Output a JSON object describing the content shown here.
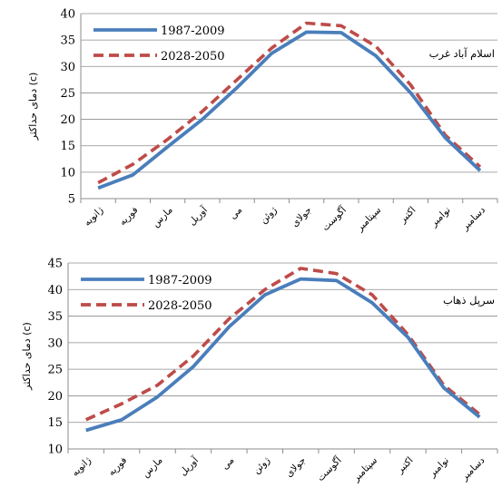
{
  "chart_data": [
    {
      "type": "line",
      "annotation": "اسلام آباد غرب",
      "ylabel": "دمای حداکثر (c)",
      "xlabel": "",
      "ylim": [
        5,
        40
      ],
      "yticks": [
        5,
        10,
        15,
        20,
        25,
        30,
        35,
        40
      ],
      "categories": [
        "ژانویه",
        "فوریه",
        "مارس",
        "آوریل",
        "می",
        "ژوئن",
        "جولای",
        "آگوست",
        "سپتامبر",
        "اکتبر",
        "نوامبر",
        "دسامبر"
      ],
      "grid": true,
      "legend_position": "top-left",
      "series": [
        {
          "name": "1987-2009",
          "color": "#4a7ebb",
          "style": "solid",
          "values": [
            7.0,
            9.5,
            14.8,
            20.0,
            26.0,
            32.5,
            36.5,
            36.4,
            32.0,
            25.0,
            16.5,
            10.3
          ]
        },
        {
          "name": "2028-2050",
          "color": "#be4b48",
          "style": "dashed",
          "values": [
            8.0,
            11.5,
            16.2,
            21.5,
            27.5,
            33.5,
            38.2,
            37.7,
            33.8,
            26.5,
            17.0,
            11.0
          ]
        }
      ]
    },
    {
      "type": "line",
      "annotation": "سرپل ذهاب",
      "ylabel": "دمای حداکثر (c)",
      "xlabel": "",
      "ylim": [
        10,
        45
      ],
      "yticks": [
        10,
        15,
        20,
        25,
        30,
        35,
        40,
        45
      ],
      "categories": [
        "ژانویه",
        "فوریه",
        "مارس",
        "آوریل",
        "می",
        "ژوئن",
        "جولای",
        "آگوست",
        "سپتامبر",
        "اکتبر",
        "نوامبر",
        "دسامبر"
      ],
      "grid": true,
      "legend_position": "top-left",
      "series": [
        {
          "name": "1987-2009",
          "color": "#4a7ebb",
          "style": "solid",
          "values": [
            13.5,
            15.5,
            19.8,
            25.5,
            33.0,
            39.0,
            42.0,
            41.7,
            37.5,
            31.0,
            21.5,
            16.0
          ]
        },
        {
          "name": "2028-2050",
          "color": "#be4b48",
          "style": "dashed",
          "values": [
            15.5,
            18.5,
            22.0,
            27.5,
            34.5,
            40.0,
            44.0,
            43.0,
            39.0,
            31.5,
            22.0,
            16.5
          ]
        }
      ]
    }
  ]
}
